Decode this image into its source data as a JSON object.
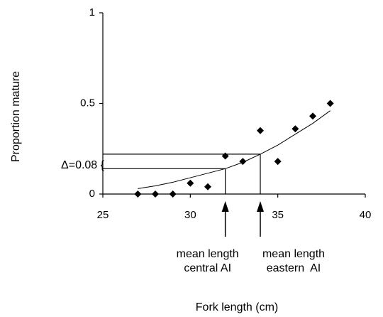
{
  "chart_data": {
    "type": "scatter",
    "xlabel": "Fork length (cm)",
    "ylabel": "Proportion mature",
    "xlim": [
      25,
      40
    ],
    "ylim": [
      0,
      1
    ],
    "x_ticks": [
      "25",
      "30",
      "35",
      "40"
    ],
    "y_ticks": [
      "0",
      "0.5",
      "1"
    ],
    "grid": false,
    "points": [
      {
        "x": 27,
        "y": 0.0
      },
      {
        "x": 28,
        "y": 0.0
      },
      {
        "x": 29,
        "y": 0.0
      },
      {
        "x": 30,
        "y": 0.06
      },
      {
        "x": 31,
        "y": 0.04
      },
      {
        "x": 32,
        "y": 0.21
      },
      {
        "x": 33,
        "y": 0.18
      },
      {
        "x": 34,
        "y": 0.35
      },
      {
        "x": 35,
        "y": 0.18
      },
      {
        "x": 36,
        "y": 0.36
      },
      {
        "x": 37,
        "y": 0.43
      },
      {
        "x": 38,
        "y": 0.5
      }
    ],
    "fit_curve": [
      {
        "x": 27,
        "y": 0.03
      },
      {
        "x": 28,
        "y": 0.045
      },
      {
        "x": 29,
        "y": 0.065
      },
      {
        "x": 30,
        "y": 0.09
      },
      {
        "x": 31,
        "y": 0.115
      },
      {
        "x": 32,
        "y": 0.14
      },
      {
        "x": 33,
        "y": 0.175
      },
      {
        "x": 34,
        "y": 0.22
      },
      {
        "x": 35,
        "y": 0.27
      },
      {
        "x": 36,
        "y": 0.33
      },
      {
        "x": 37,
        "y": 0.39
      },
      {
        "x": 38,
        "y": 0.46
      }
    ],
    "markers": [
      {
        "x": 32,
        "y": 0.14,
        "label_lines": [
          "mean length",
          "central AI"
        ]
      },
      {
        "x": 34,
        "y": 0.22,
        "label_lines": [
          "mean length",
          "eastern  AI"
        ]
      }
    ],
    "delta_label": "Δ=0.08 {"
  }
}
